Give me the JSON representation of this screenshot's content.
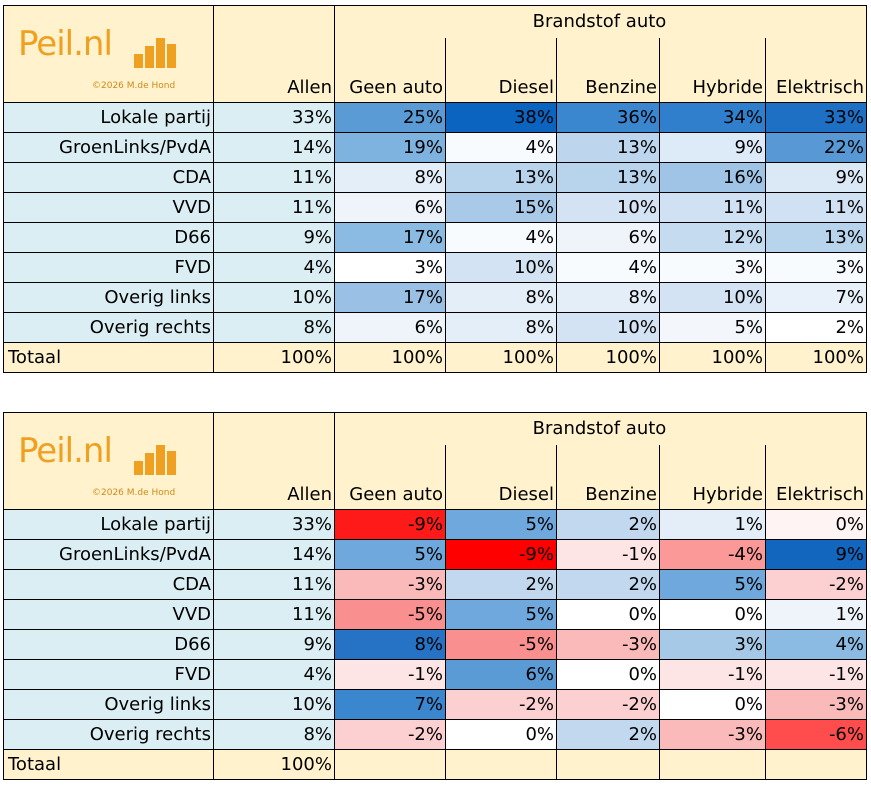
{
  "logo": {
    "text": "Peil.nl",
    "sub": "©2026 M.de Hond"
  },
  "header": {
    "group_title": "Brandstof auto",
    "columns": [
      "Allen",
      "Geen auto",
      "Diesel",
      "Benzine",
      "Hybride",
      "Elektrisch"
    ]
  },
  "table1": {
    "rows": [
      {
        "party": "Lokale partij",
        "cells": [
          "33%",
          "25%",
          "38%",
          "36%",
          "34%",
          "33%"
        ]
      },
      {
        "party": "GroenLinks/PvdA",
        "cells": [
          "14%",
          "19%",
          "4%",
          "13%",
          "9%",
          "22%"
        ]
      },
      {
        "party": "CDA",
        "cells": [
          "11%",
          "8%",
          "13%",
          "13%",
          "16%",
          "9%"
        ]
      },
      {
        "party": "VVD",
        "cells": [
          "11%",
          "6%",
          "15%",
          "10%",
          "11%",
          "11%"
        ]
      },
      {
        "party": "D66",
        "cells": [
          "9%",
          "17%",
          "4%",
          "6%",
          "12%",
          "13%"
        ]
      },
      {
        "party": "FVD",
        "cells": [
          "4%",
          "3%",
          "10%",
          "4%",
          "3%",
          "3%"
        ]
      },
      {
        "party": "Overig links",
        "cells": [
          "10%",
          "17%",
          "8%",
          "8%",
          "10%",
          "7%"
        ]
      },
      {
        "party": "Overig rechts",
        "cells": [
          "8%",
          "6%",
          "8%",
          "10%",
          "5%",
          "2%"
        ]
      }
    ],
    "total": {
      "label": "Totaal",
      "cells": [
        "100%",
        "100%",
        "100%",
        "100%",
        "100%",
        "100%"
      ]
    },
    "colors": [
      [
        "#daeef3",
        "#5b9bd5",
        "#0a64c0",
        "#3a86cf",
        "#2f7fcc",
        "#1d70c4"
      ],
      [
        "#daeef3",
        "#7eb2df",
        "#f8fbfe",
        "#bdd6ee",
        "#ddeaf7",
        "#5798d5"
      ],
      [
        "#daeef3",
        "#e4eef8",
        "#b8d3ec",
        "#b8d3ec",
        "#9fc4e6",
        "#dbe8f6"
      ],
      [
        "#daeef3",
        "#eef4fa",
        "#a8cae8",
        "#d3e3f3",
        "#cfe1f2",
        "#cfe1f2"
      ],
      [
        "#daeef3",
        "#8bbae2",
        "#f8fbfe",
        "#eef4fa",
        "#c5dbf0",
        "#b8d3ec"
      ],
      [
        "#daeef3",
        "#ffffff",
        "#d3e3f3",
        "#f8fbfe",
        "#f8fbfe",
        "#f8fbfe"
      ],
      [
        "#daeef3",
        "#9ac1e5",
        "#e4eef8",
        "#e4eef8",
        "#d3e3f3",
        "#e8f0f9"
      ],
      [
        "#daeef3",
        "#eef4fa",
        "#e4eef8",
        "#d3e3f3",
        "#f3f7fc",
        "#ffffff"
      ]
    ]
  },
  "table2": {
    "rows": [
      {
        "party": "Lokale partij",
        "cells": [
          "33%",
          "-9%",
          "5%",
          "2%",
          "1%",
          "0%"
        ]
      },
      {
        "party": "GroenLinks/PvdA",
        "cells": [
          "14%",
          "5%",
          "-9%",
          "-1%",
          "-4%",
          "9%"
        ]
      },
      {
        "party": "CDA",
        "cells": [
          "11%",
          "-3%",
          "2%",
          "2%",
          "5%",
          "-2%"
        ]
      },
      {
        "party": "VVD",
        "cells": [
          "11%",
          "-5%",
          "5%",
          "0%",
          "0%",
          "1%"
        ]
      },
      {
        "party": "D66",
        "cells": [
          "9%",
          "8%",
          "-5%",
          "-3%",
          "3%",
          "4%"
        ]
      },
      {
        "party": "FVD",
        "cells": [
          "4%",
          "-1%",
          "6%",
          "0%",
          "-1%",
          "-1%"
        ]
      },
      {
        "party": "Overig links",
        "cells": [
          "10%",
          "7%",
          "-2%",
          "-2%",
          "0%",
          "-3%"
        ]
      },
      {
        "party": "Overig rechts",
        "cells": [
          "8%",
          "-2%",
          "0%",
          "2%",
          "-3%",
          "-6%"
        ]
      }
    ],
    "total": {
      "label": "Totaal",
      "cells": [
        "100%",
        "",
        "",
        "",
        "",
        ""
      ]
    },
    "colors": [
      [
        "#daeef3",
        "#ff1a1a",
        "#6ea8dc",
        "#c2d8ef",
        "#e4eef8",
        "#fff4f4"
      ],
      [
        "#daeef3",
        "#6ea8dc",
        "#ff0000",
        "#fde5e5",
        "#fb9898",
        "#1366be"
      ],
      [
        "#daeef3",
        "#fbbaba",
        "#c2d8ef",
        "#c2d8ef",
        "#6ea8dc",
        "#fcd0d0"
      ],
      [
        "#daeef3",
        "#fa8f8f",
        "#6ea8dc",
        "#ffffff",
        "#ffffff",
        "#eef4fa"
      ],
      [
        "#daeef3",
        "#2673c6",
        "#fa8f8f",
        "#fbbaba",
        "#a6c9e8",
        "#8bbae2"
      ],
      [
        "#daeef3",
        "#fde5e5",
        "#5b9bd5",
        "#ffffff",
        "#fde5e5",
        "#fde5e5"
      ],
      [
        "#daeef3",
        "#3a86cf",
        "#fcd0d0",
        "#fcd0d0",
        "#ffffff",
        "#fbbaba"
      ],
      [
        "#daeef3",
        "#fcd0d0",
        "#ffffff",
        "#c2d8ef",
        "#fbbaba",
        "#ff4d4d"
      ]
    ]
  }
}
